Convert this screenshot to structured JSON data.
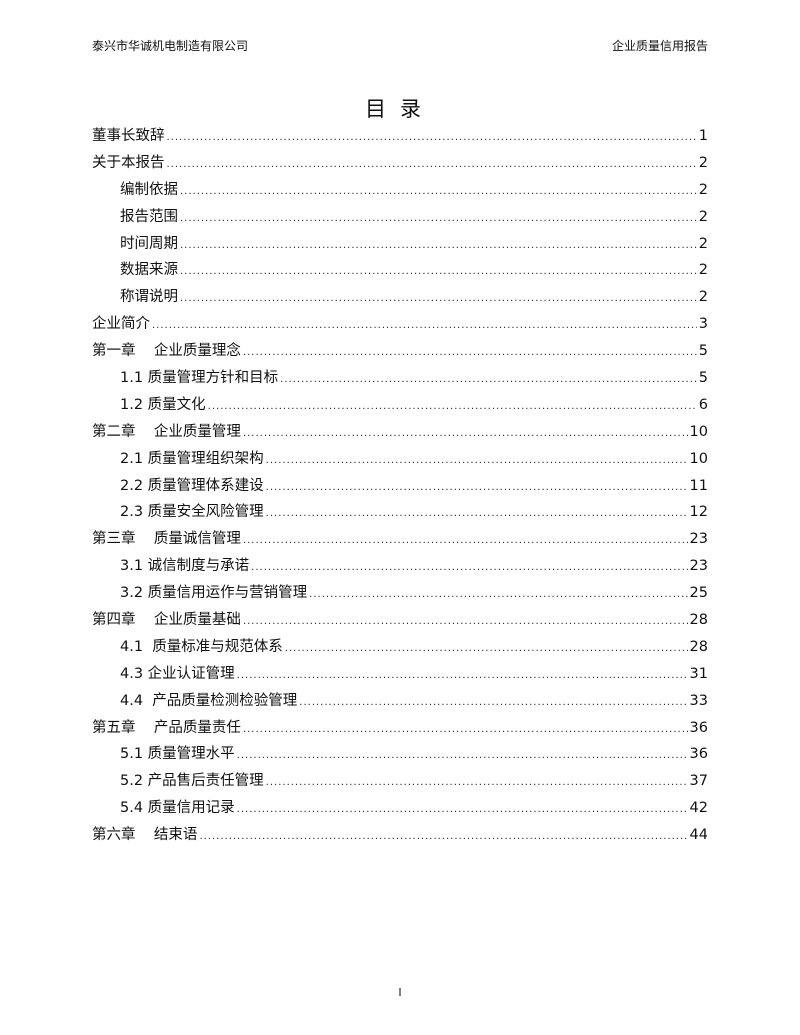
{
  "header": {
    "company": "泰兴市华诚机电制造有限公司",
    "report": "企业质量信用报告"
  },
  "title": "目录",
  "toc": [
    {
      "label": "董事长致辞",
      "page": "1",
      "level": 1
    },
    {
      "label": "关于本报告",
      "page": "2",
      "level": 1
    },
    {
      "label": "编制依据",
      "page": "2",
      "level": 2
    },
    {
      "label": "报告范围",
      "page": "2",
      "level": 2
    },
    {
      "label": "时间周期",
      "page": "2",
      "level": 2
    },
    {
      "label": "数据来源",
      "page": "2",
      "level": 2
    },
    {
      "label": "称谓说明",
      "page": "2",
      "level": 2
    },
    {
      "label": "企业简介",
      "page": "3",
      "level": 1
    },
    {
      "label": "第一章    企业质量理念",
      "page": "5",
      "level": 1
    },
    {
      "label": "1.1 质量管理方针和目标",
      "page": "5",
      "level": 2
    },
    {
      "label": "1.2 质量文化",
      "page": "6",
      "level": 2
    },
    {
      "label": "第二章    企业质量管理",
      "page": "10",
      "level": 1
    },
    {
      "label": "2.1 质量管理组织架构",
      "page": "10",
      "level": 2
    },
    {
      "label": "2.2 质量管理体系建设",
      "page": "11",
      "level": 2
    },
    {
      "label": "2.3 质量安全风险管理",
      "page": "12",
      "level": 2
    },
    {
      "label": "第三章    质量诚信管理",
      "page": "23",
      "level": 1
    },
    {
      "label": "3.1 诚信制度与承诺",
      "page": "23",
      "level": 2
    },
    {
      "label": "3.2 质量信用运作与营销管理",
      "page": "25",
      "level": 2
    },
    {
      "label": "第四章    企业质量基础",
      "page": "28",
      "level": 1
    },
    {
      "label": "4.1  质量标准与规范体系",
      "page": "28",
      "level": 2
    },
    {
      "label": "4.3 企业认证管理",
      "page": "31",
      "level": 2
    },
    {
      "label": "4.4  产品质量检测检验管理",
      "page": "33",
      "level": 2
    },
    {
      "label": "第五章    产品质量责任",
      "page": "36",
      "level": 1
    },
    {
      "label": "5.1 质量管理水平",
      "page": "36",
      "level": 2
    },
    {
      "label": "5.2 产品售后责任管理",
      "page": "37",
      "level": 2
    },
    {
      "label": "5.4 质量信用记录",
      "page": "42",
      "level": 2
    },
    {
      "label": "第六章    结束语",
      "page": "44",
      "level": 1
    }
  ],
  "footer": {
    "page_number": "I"
  }
}
